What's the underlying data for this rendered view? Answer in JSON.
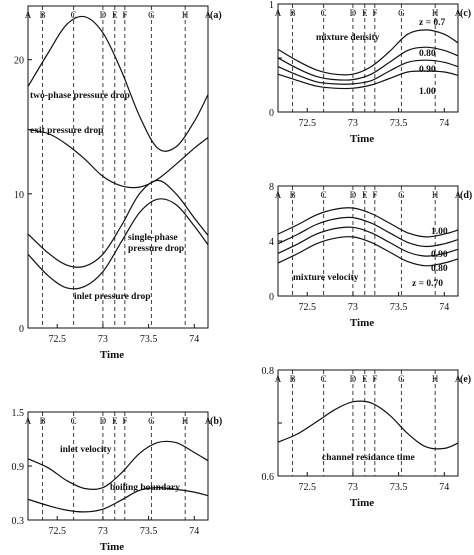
{
  "figure": {
    "marker_labels": [
      "A",
      "B",
      "C",
      "D",
      "E",
      "F",
      "G",
      "H",
      "A"
    ],
    "marker_times": [
      72.18,
      72.34,
      72.68,
      73.0,
      73.13,
      73.24,
      73.53,
      73.9,
      74.15
    ]
  },
  "chart_data": [
    {
      "id": "a",
      "type": "line",
      "panel_label": "(a)",
      "xlabel": "Time",
      "ylabel": "",
      "xlim": [
        72.18,
        74.15
      ],
      "ylim": [
        0,
        24
      ],
      "xticks": [
        72.5,
        73,
        73.5,
        74
      ],
      "xtick_labels": [
        "72.5",
        "73",
        "73.5",
        "74"
      ],
      "yticks": [
        0,
        10,
        20
      ],
      "ytick_labels": [
        "0",
        "10",
        "20"
      ],
      "series": [
        {
          "name": "two-phase pressure drop",
          "x": [
            72.18,
            72.4,
            72.6,
            72.8,
            73.0,
            73.2,
            73.4,
            73.6,
            73.8,
            74.0,
            74.15
          ],
          "y": [
            18.0,
            20.5,
            22.6,
            23.2,
            22.0,
            19.2,
            15.8,
            13.4,
            13.5,
            15.4,
            17.4
          ]
        },
        {
          "name": "exit pressure drop",
          "x": [
            72.18,
            72.4,
            72.6,
            72.8,
            73.0,
            73.2,
            73.4,
            73.6,
            73.8,
            74.0,
            74.15
          ],
          "y": [
            14.8,
            14.5,
            13.7,
            12.6,
            11.3,
            10.6,
            10.5,
            11.1,
            12.2,
            13.4,
            14.2
          ]
        },
        {
          "name": "single-phase pressure drop",
          "x": [
            72.18,
            72.4,
            72.6,
            72.8,
            73.0,
            73.2,
            73.4,
            73.6,
            73.8,
            74.0,
            74.15
          ],
          "y": [
            7.0,
            5.6,
            4.7,
            4.6,
            5.5,
            7.6,
            10.0,
            11.0,
            10.0,
            8.2,
            6.9
          ]
        },
        {
          "name": "inlet pressure drop",
          "x": [
            72.18,
            72.4,
            72.6,
            72.8,
            73.0,
            73.2,
            73.4,
            73.6,
            73.8,
            74.0,
            74.15
          ],
          "y": [
            5.5,
            3.9,
            3.0,
            3.1,
            4.2,
            6.4,
            8.6,
            9.6,
            9.2,
            7.6,
            6.2
          ]
        }
      ],
      "annotations": [
        "two-phase pressure drop",
        "exit pressure drop",
        "single-phase",
        "pressure drop",
        "inlet pressure drop"
      ]
    },
    {
      "id": "b",
      "type": "line",
      "panel_label": "(b)",
      "xlabel": "Time",
      "ylabel": "",
      "xlim": [
        72.18,
        74.15
      ],
      "ylim": [
        0.3,
        1.5
      ],
      "xticks": [
        72.5,
        73,
        73.5,
        74
      ],
      "xtick_labels": [
        "72.5",
        "73",
        "73.5",
        "74"
      ],
      "yticks": [
        0.3,
        0.9,
        1.5
      ],
      "ytick_labels": [
        "0.3",
        "0.9",
        "1.5"
      ],
      "series": [
        {
          "name": "inlet velocity",
          "x": [
            72.18,
            72.4,
            72.6,
            72.8,
            73.0,
            73.2,
            73.4,
            73.6,
            73.8,
            74.0,
            74.15
          ],
          "y": [
            0.98,
            0.88,
            0.74,
            0.65,
            0.66,
            0.82,
            1.04,
            1.16,
            1.16,
            1.05,
            0.96
          ]
        },
        {
          "name": "boiling boundary",
          "x": [
            72.18,
            72.4,
            72.6,
            72.8,
            73.0,
            73.2,
            73.4,
            73.6,
            73.8,
            74.0,
            74.15
          ],
          "y": [
            0.53,
            0.46,
            0.41,
            0.39,
            0.42,
            0.52,
            0.63,
            0.66,
            0.64,
            0.61,
            0.57
          ]
        }
      ],
      "annotations": [
        "inlet velocity",
        "boiling boundary"
      ]
    },
    {
      "id": "c",
      "type": "line",
      "panel_label": "(c)",
      "xlabel": "Time",
      "ylabel": "",
      "xlim": [
        72.18,
        74.15
      ],
      "ylim": [
        0,
        1
      ],
      "xticks": [
        72.5,
        73,
        73.5,
        74
      ],
      "xtick_labels": [
        "72.5",
        "73",
        "73.5",
        "74"
      ],
      "yticks": [
        0,
        0.5,
        1
      ],
      "ytick_labels": [
        "0",
        "",
        "1"
      ],
      "series": [
        {
          "name": "z = 0.7",
          "x": [
            72.18,
            72.4,
            72.6,
            72.8,
            73.0,
            73.2,
            73.4,
            73.6,
            73.8,
            74.0,
            74.15
          ],
          "y": [
            0.58,
            0.47,
            0.39,
            0.35,
            0.35,
            0.42,
            0.56,
            0.72,
            0.76,
            0.72,
            0.64
          ]
        },
        {
          "name": "0.80",
          "x": [
            72.18,
            72.4,
            72.6,
            72.8,
            73.0,
            73.2,
            73.4,
            73.6,
            73.8,
            74.0,
            74.15
          ],
          "y": [
            0.5,
            0.4,
            0.33,
            0.3,
            0.3,
            0.35,
            0.46,
            0.57,
            0.6,
            0.57,
            0.52
          ]
        },
        {
          "name": "0.90",
          "x": [
            72.18,
            72.4,
            72.6,
            72.8,
            73.0,
            73.2,
            73.4,
            73.6,
            73.8,
            74.0,
            74.15
          ],
          "y": [
            0.42,
            0.34,
            0.28,
            0.26,
            0.26,
            0.29,
            0.38,
            0.46,
            0.48,
            0.46,
            0.42
          ]
        },
        {
          "name": "1.00",
          "x": [
            72.18,
            72.4,
            72.6,
            72.8,
            73.0,
            73.2,
            73.4,
            73.6,
            73.8,
            74.0,
            74.15
          ],
          "y": [
            0.35,
            0.29,
            0.24,
            0.22,
            0.22,
            0.25,
            0.31,
            0.37,
            0.38,
            0.37,
            0.34
          ]
        }
      ],
      "annotations": [
        "mixture density",
        "z = 0.7",
        "0.80",
        "0.90",
        "1.00"
      ]
    },
    {
      "id": "d",
      "type": "line",
      "panel_label": "(d)",
      "xlabel": "Time",
      "ylabel": "",
      "xlim": [
        72.18,
        74.15
      ],
      "ylim": [
        0,
        8
      ],
      "xticks": [
        72.5,
        73,
        73.5,
        74
      ],
      "xtick_labels": [
        "72.5",
        "73",
        "73.5",
        "74"
      ],
      "yticks": [
        0,
        4,
        8
      ],
      "ytick_labels": [
        "0",
        "4",
        "8"
      ],
      "series": [
        {
          "name": "1.00",
          "x": [
            72.18,
            72.4,
            72.6,
            72.8,
            73.0,
            73.2,
            73.4,
            73.6,
            73.8,
            74.0,
            74.15
          ],
          "y": [
            4.5,
            5.2,
            5.9,
            6.3,
            6.4,
            6.0,
            5.3,
            4.6,
            4.3,
            4.5,
            4.8
          ]
        },
        {
          "name": "0.90",
          "x": [
            72.18,
            72.4,
            72.6,
            72.8,
            73.0,
            73.2,
            73.4,
            73.6,
            73.8,
            74.0,
            74.15
          ],
          "y": [
            3.8,
            4.5,
            5.2,
            5.6,
            5.7,
            5.3,
            4.6,
            3.9,
            3.6,
            3.8,
            4.1
          ]
        },
        {
          "name": "0.80",
          "x": [
            72.18,
            72.4,
            72.6,
            72.8,
            73.0,
            73.2,
            73.4,
            73.6,
            73.8,
            74.0,
            74.15
          ],
          "y": [
            3.1,
            3.8,
            4.5,
            4.9,
            5.0,
            4.6,
            3.9,
            3.2,
            2.9,
            3.1,
            3.4
          ]
        },
        {
          "name": "z = 0.70",
          "x": [
            72.18,
            72.4,
            72.6,
            72.8,
            73.0,
            73.2,
            73.4,
            73.6,
            73.8,
            74.0,
            74.15
          ],
          "y": [
            2.4,
            3.1,
            3.8,
            4.2,
            4.3,
            3.9,
            3.2,
            2.5,
            2.2,
            2.4,
            2.7
          ]
        }
      ],
      "annotations": [
        "mixture velocity",
        "1.00",
        "0.90",
        "0.80",
        "z = 0.70"
      ]
    },
    {
      "id": "e",
      "type": "line",
      "panel_label": "(e)",
      "xlabel": "Time",
      "ylabel": "",
      "xlim": [
        72.18,
        74.15
      ],
      "ylim": [
        0.6,
        0.8
      ],
      "xticks": [
        72.5,
        73,
        73.5,
        74
      ],
      "xtick_labels": [
        "72.5",
        "73",
        "73.5",
        "74"
      ],
      "yticks": [
        0.6,
        0.7,
        0.8
      ],
      "ytick_labels": [
        "0.6",
        "",
        "0.8"
      ],
      "series": [
        {
          "name": "channel residance time",
          "x": [
            72.18,
            72.4,
            72.6,
            72.8,
            73.0,
            73.2,
            73.4,
            73.6,
            73.8,
            74.0,
            74.15
          ],
          "y": [
            0.664,
            0.68,
            0.702,
            0.725,
            0.74,
            0.738,
            0.715,
            0.68,
            0.655,
            0.652,
            0.662
          ]
        }
      ],
      "annotations": [
        "channel residance time"
      ]
    }
  ]
}
